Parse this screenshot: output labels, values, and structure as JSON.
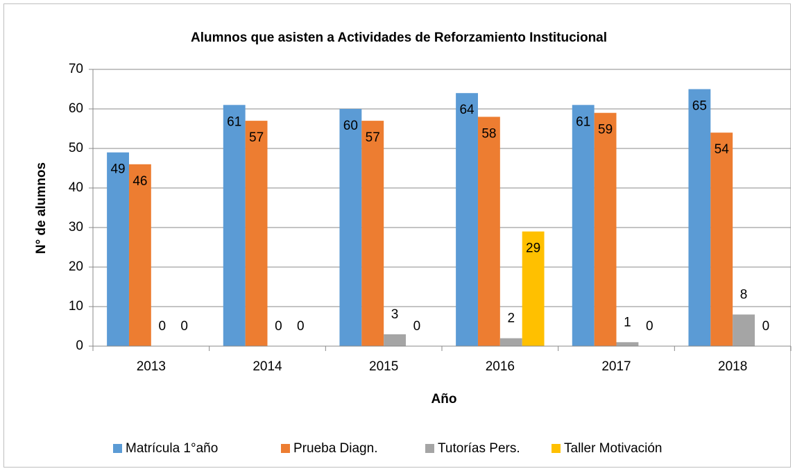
{
  "chart_data": {
    "type": "bar",
    "title": "Alumnos que asisten a Actividades de Reforzamiento Institucional",
    "x_label": "Año",
    "y_label": "N° de alumnos",
    "categories": [
      "2013",
      "2014",
      "2015",
      "2016",
      "2017",
      "2018"
    ],
    "series": [
      {
        "name": "Matrícula 1°año",
        "color": "#5b9bd5",
        "values": [
          49,
          61,
          60,
          64,
          61,
          65
        ]
      },
      {
        "name": "Prueba Diagn.",
        "color": "#ed7d31",
        "values": [
          46,
          57,
          57,
          58,
          59,
          54
        ]
      },
      {
        "name": "Tutorías Pers.",
        "color": "#a5a5a5",
        "values": [
          0,
          0,
          3,
          2,
          1,
          8
        ]
      },
      {
        "name": "Taller Motivación",
        "color": "#ffc000",
        "values": [
          0,
          0,
          0,
          29,
          0,
          0
        ]
      }
    ],
    "ylim": [
      0,
      70
    ],
    "yticks": [
      0,
      10,
      20,
      30,
      40,
      50,
      60,
      70
    ],
    "grid": true,
    "legend": "bottom"
  }
}
